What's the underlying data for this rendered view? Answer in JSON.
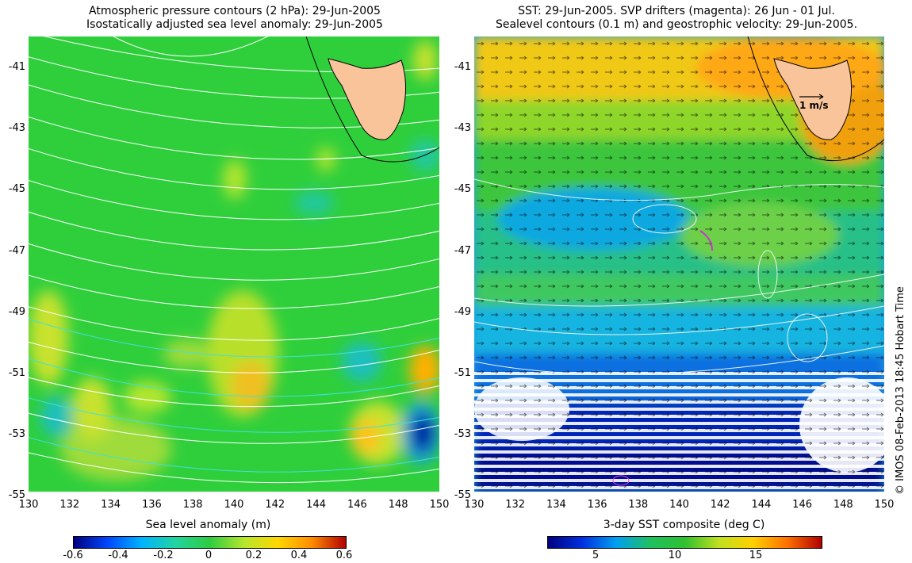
{
  "left_panel": {
    "title_line1": "Atmospheric pressure contours (2 hPa): 29-Jun-2005",
    "title_line2": "Isostatically adjusted sea level anomaly: 29-Jun-2005",
    "colorbar_label": "Sea level anomaly (m)",
    "colorbar_ticks": [
      "-0.6",
      "-0.4",
      "-0.2",
      "0",
      "0.2",
      "0.4",
      "0.6"
    ]
  },
  "right_panel": {
    "title_line1": "SST: 29-Jun-2005. SVP drifters (magenta): 26 Jun - 01 Jul.",
    "title_line2": "Sealevel contours (0.1 m) and geostrophic velocity: 29-Jun-2005.",
    "scale_arrow_label": "1 m/s",
    "colorbar_label": "3-day SST composite (deg C)",
    "colorbar_ticks": [
      "5",
      "10",
      "15"
    ]
  },
  "axes": {
    "lat_ticks": [
      "-41",
      "-43",
      "-45",
      "-47",
      "-49",
      "-51",
      "-53",
      "-55"
    ],
    "lon_ticks": [
      "130",
      "132",
      "134",
      "136",
      "138",
      "140",
      "142",
      "144",
      "146",
      "148",
      "150"
    ]
  },
  "credit": "© IMOS 08-Feb-2013 18:45 Hobart Time",
  "colors": {
    "land": "#f9c49a",
    "sla_scale": [
      "#00007f",
      "#0047ff",
      "#00b4ff",
      "#22d4a0",
      "#2ecc40",
      "#b4e62d",
      "#ffd700",
      "#ff8c00",
      "#b40000"
    ],
    "sst_scale": [
      "#00007f",
      "#0030e0",
      "#00a0f0",
      "#20c060",
      "#30c030",
      "#c0e020",
      "#ffd000",
      "#ff7000",
      "#b00000"
    ]
  }
}
